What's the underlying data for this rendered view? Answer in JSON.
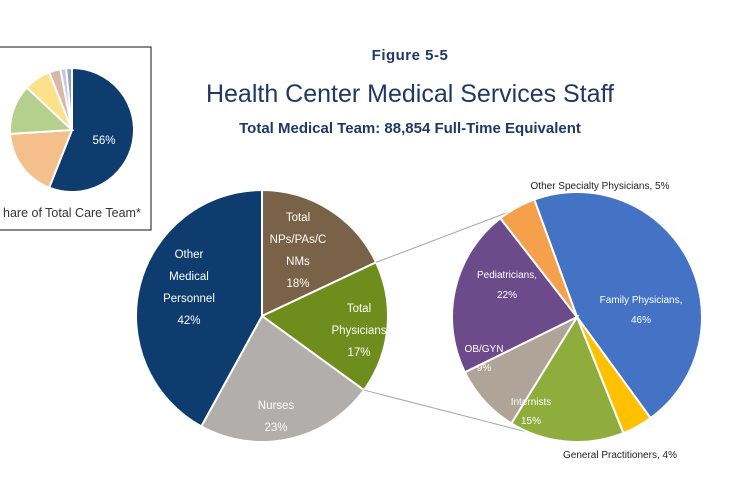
{
  "figure_label": "Figure 5-5",
  "title": "Health Center Medical Services Staff",
  "subtitle": "Total Medical Team: 88,854 Full-Time Equivalent",
  "inset_caption": "hare of Total Care Team*",
  "chart_data": [
    {
      "type": "pie",
      "name": "inset",
      "slices": [
        {
          "label": "",
          "value": 56,
          "display": "56%",
          "color": "#0e3c6e"
        },
        {
          "label": "",
          "value": 18,
          "display": "",
          "color": "#f4bf8a"
        },
        {
          "label": "",
          "value": 13,
          "display": "",
          "color": "#b5cf8c"
        },
        {
          "label": "",
          "value": 7,
          "display": "",
          "color": "#fde08a"
        },
        {
          "label": "",
          "value": 3,
          "display": "",
          "color": "#d8b8a8"
        },
        {
          "label": "",
          "value": 1.5,
          "display": "",
          "color": "#c3c8d8"
        },
        {
          "label": "",
          "value": 1.5,
          "display": "",
          "color": "#8aa3c8"
        }
      ]
    },
    {
      "type": "pie",
      "name": "main",
      "slices": [
        {
          "label": "Total NPs/PAs/C NMs",
          "lines": [
            "Total",
            "NPs/PAs/C",
            "NMs"
          ],
          "value": 18,
          "display": "18%",
          "color": "#7a6248"
        },
        {
          "label": "Total Physicians",
          "lines": [
            "Total",
            "Physicians"
          ],
          "value": 17,
          "display": "17%",
          "color": "#6f8d1c"
        },
        {
          "label": "Nurses",
          "lines": [
            "Nurses"
          ],
          "value": 23,
          "display": "23%",
          "color": "#b1aeab"
        },
        {
          "label": "Other Medical Personnel",
          "lines": [
            "Other",
            "Medical",
            "Personnel"
          ],
          "value": 42,
          "display": "42%",
          "color": "#0e3c6e"
        }
      ]
    },
    {
      "type": "pie",
      "name": "physicians-breakdown",
      "slices": [
        {
          "label": "Family Physicians,",
          "value": 46,
          "display": "46%",
          "color": "#4472c4"
        },
        {
          "label": "General Practitioners,",
          "value": 4,
          "display": "4%",
          "color": "#ffc000"
        },
        {
          "label": "Internists",
          "value": 15,
          "display": "15%",
          "color": "#8fad3c"
        },
        {
          "label": "OB/GYN",
          "value": 9,
          "display": "9%",
          "color": "#b0a397"
        },
        {
          "label": "Pediatricians,",
          "value": 22,
          "display": "22%",
          "color": "#6d4a8a"
        },
        {
          "label": "Other Specialty Physicians,",
          "value": 5,
          "display": "5%",
          "color": "#f5a04a"
        }
      ]
    }
  ]
}
